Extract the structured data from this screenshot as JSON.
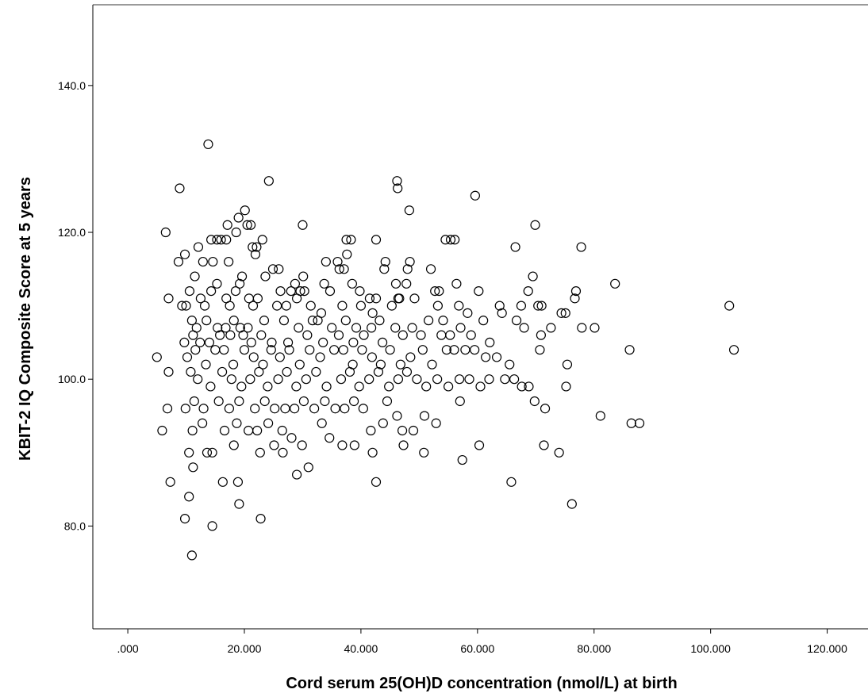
{
  "chart_data": {
    "type": "scatter",
    "xlabel": "Cord serum 25(OH)D concentration (nmol/L) at birth",
    "ylabel": "KBIT-2 IQ Composite Score at 5 years",
    "xlim": [
      -6,
      127
    ],
    "ylim": [
      66,
      151
    ],
    "x_ticks": [
      0,
      20,
      40,
      60,
      80,
      100,
      120
    ],
    "x_tick_labels": [
      ".000",
      "20.000",
      "40.000",
      "60.000",
      "80.000",
      "100.000",
      "120.000"
    ],
    "y_ticks": [
      80,
      100,
      120,
      140
    ],
    "y_tick_labels": [
      "80.0",
      "100.0",
      "120.0",
      "140.0"
    ],
    "grid": false,
    "marker": "open-circle",
    "points": [
      [
        13.8,
        132
      ],
      [
        8.9,
        126
      ],
      [
        24.2,
        127
      ],
      [
        46.2,
        127
      ],
      [
        46.3,
        126
      ],
      [
        59.6,
        125
      ],
      [
        20.1,
        123
      ],
      [
        48.3,
        123
      ],
      [
        6.5,
        120
      ],
      [
        17.1,
        121
      ],
      [
        20.5,
        121
      ],
      [
        21.1,
        121
      ],
      [
        30.0,
        121
      ],
      [
        69.9,
        121
      ],
      [
        19.0,
        122
      ],
      [
        18.6,
        120
      ],
      [
        9.8,
        117
      ],
      [
        12.1,
        118
      ],
      [
        14.3,
        119
      ],
      [
        15.3,
        119
      ],
      [
        16.0,
        119
      ],
      [
        16.9,
        119
      ],
      [
        21.4,
        118
      ],
      [
        22.1,
        118
      ],
      [
        21.9,
        117
      ],
      [
        23.1,
        119
      ],
      [
        37.5,
        119
      ],
      [
        38.3,
        119
      ],
      [
        42.6,
        119
      ],
      [
        54.5,
        119
      ],
      [
        55.4,
        119
      ],
      [
        56.1,
        119
      ],
      [
        66.5,
        118
      ],
      [
        77.8,
        118
      ],
      [
        37.6,
        117
      ],
      [
        8.7,
        116
      ],
      [
        12.9,
        116
      ],
      [
        14.6,
        116
      ],
      [
        17.3,
        116
      ],
      [
        34.0,
        116
      ],
      [
        36.0,
        116
      ],
      [
        44.2,
        116
      ],
      [
        48.4,
        116
      ],
      [
        24.9,
        115
      ],
      [
        25.9,
        115
      ],
      [
        36.3,
        115
      ],
      [
        37.1,
        115
      ],
      [
        44.0,
        115
      ],
      [
        48.0,
        115
      ],
      [
        52.0,
        115
      ],
      [
        11.5,
        114
      ],
      [
        15.3,
        113
      ],
      [
        19.2,
        113
      ],
      [
        19.6,
        114
      ],
      [
        23.6,
        114
      ],
      [
        28.0,
        112
      ],
      [
        28.7,
        113
      ],
      [
        30.1,
        114
      ],
      [
        33.7,
        113
      ],
      [
        38.5,
        113
      ],
      [
        46.0,
        113
      ],
      [
        47.8,
        113
      ],
      [
        56.4,
        113
      ],
      [
        69.5,
        114
      ],
      [
        83.6,
        113
      ],
      [
        10.6,
        112
      ],
      [
        14.3,
        112
      ],
      [
        16.9,
        111
      ],
      [
        18.5,
        112
      ],
      [
        26.2,
        112
      ],
      [
        29.6,
        112
      ],
      [
        30.3,
        112
      ],
      [
        34.7,
        112
      ],
      [
        39.8,
        112
      ],
      [
        41.5,
        111
      ],
      [
        42.6,
        111
      ],
      [
        46.6,
        111
      ],
      [
        52.7,
        112
      ],
      [
        53.4,
        112
      ],
      [
        60.2,
        112
      ],
      [
        68.7,
        112
      ],
      [
        76.9,
        112
      ],
      [
        7.0,
        111
      ],
      [
        9.3,
        110
      ],
      [
        10.0,
        110
      ],
      [
        12.5,
        111
      ],
      [
        13.2,
        110
      ],
      [
        17.5,
        110
      ],
      [
        20.8,
        111
      ],
      [
        21.5,
        110
      ],
      [
        22.3,
        111
      ],
      [
        25.6,
        110
      ],
      [
        27.2,
        110
      ],
      [
        29.0,
        111
      ],
      [
        31.4,
        110
      ],
      [
        33.2,
        109
      ],
      [
        36.8,
        110
      ],
      [
        40.0,
        110
      ],
      [
        42.0,
        109
      ],
      [
        45.3,
        110
      ],
      [
        46.4,
        111
      ],
      [
        49.2,
        111
      ],
      [
        53.2,
        110
      ],
      [
        56.8,
        110
      ],
      [
        63.8,
        110
      ],
      [
        67.5,
        110
      ],
      [
        70.4,
        110
      ],
      [
        71.0,
        110
      ],
      [
        76.7,
        111
      ],
      [
        103.2,
        110
      ],
      [
        11.0,
        108
      ],
      [
        11.8,
        107
      ],
      [
        13.5,
        108
      ],
      [
        15.4,
        107
      ],
      [
        16.8,
        107
      ],
      [
        18.2,
        108
      ],
      [
        19.3,
        107
      ],
      [
        20.6,
        107
      ],
      [
        23.4,
        108
      ],
      [
        26.8,
        108
      ],
      [
        29.3,
        107
      ],
      [
        31.7,
        108
      ],
      [
        32.6,
        108
      ],
      [
        35.0,
        107
      ],
      [
        37.4,
        108
      ],
      [
        39.2,
        107
      ],
      [
        41.8,
        107
      ],
      [
        43.2,
        108
      ],
      [
        45.9,
        107
      ],
      [
        48.8,
        107
      ],
      [
        51.6,
        108
      ],
      [
        54.1,
        108
      ],
      [
        57.1,
        107
      ],
      [
        58.3,
        109
      ],
      [
        61.0,
        108
      ],
      [
        64.2,
        109
      ],
      [
        66.7,
        108
      ],
      [
        68.0,
        107
      ],
      [
        72.6,
        107
      ],
      [
        74.4,
        109
      ],
      [
        75.1,
        109
      ],
      [
        77.9,
        107
      ],
      [
        80.1,
        107
      ],
      [
        11.2,
        106
      ],
      [
        12.4,
        105
      ],
      [
        14.0,
        105
      ],
      [
        15.8,
        106
      ],
      [
        17.6,
        106
      ],
      [
        19.8,
        106
      ],
      [
        21.2,
        105
      ],
      [
        22.9,
        106
      ],
      [
        24.7,
        105
      ],
      [
        27.5,
        105
      ],
      [
        30.8,
        106
      ],
      [
        33.5,
        105
      ],
      [
        36.2,
        106
      ],
      [
        38.7,
        105
      ],
      [
        40.5,
        106
      ],
      [
        43.7,
        105
      ],
      [
        47.2,
        106
      ],
      [
        50.3,
        106
      ],
      [
        53.8,
        106
      ],
      [
        55.3,
        106
      ],
      [
        58.9,
        106
      ],
      [
        62.1,
        105
      ],
      [
        70.9,
        106
      ],
      [
        9.7,
        105
      ],
      [
        5.0,
        103
      ],
      [
        10.2,
        103
      ],
      [
        11.6,
        104
      ],
      [
        13.4,
        102
      ],
      [
        15.0,
        104
      ],
      [
        16.5,
        104
      ],
      [
        18.1,
        102
      ],
      [
        20.0,
        104
      ],
      [
        21.6,
        103
      ],
      [
        23.2,
        102
      ],
      [
        24.6,
        104
      ],
      [
        26.1,
        103
      ],
      [
        27.7,
        104
      ],
      [
        29.5,
        102
      ],
      [
        31.2,
        104
      ],
      [
        33.0,
        103
      ],
      [
        35.4,
        104
      ],
      [
        37.0,
        104
      ],
      [
        38.6,
        102
      ],
      [
        40.2,
        104
      ],
      [
        41.9,
        103
      ],
      [
        43.4,
        102
      ],
      [
        45.0,
        104
      ],
      [
        46.8,
        102
      ],
      [
        48.5,
        103
      ],
      [
        50.6,
        104
      ],
      [
        52.2,
        102
      ],
      [
        54.7,
        104
      ],
      [
        56.0,
        104
      ],
      [
        57.9,
        104
      ],
      [
        59.5,
        104
      ],
      [
        61.4,
        103
      ],
      [
        63.3,
        103
      ],
      [
        65.5,
        102
      ],
      [
        70.7,
        104
      ],
      [
        75.4,
        102
      ],
      [
        86.1,
        104
      ],
      [
        104.0,
        104
      ],
      [
        7.0,
        101
      ],
      [
        10.8,
        101
      ],
      [
        12.0,
        100
      ],
      [
        14.2,
        99
      ],
      [
        16.2,
        101
      ],
      [
        17.8,
        100
      ],
      [
        19.5,
        99
      ],
      [
        21.0,
        100
      ],
      [
        22.5,
        101
      ],
      [
        24.0,
        99
      ],
      [
        25.8,
        100
      ],
      [
        27.3,
        101
      ],
      [
        28.9,
        99
      ],
      [
        30.6,
        100
      ],
      [
        32.3,
        101
      ],
      [
        34.1,
        99
      ],
      [
        36.6,
        100
      ],
      [
        38.1,
        101
      ],
      [
        39.7,
        99
      ],
      [
        41.4,
        100
      ],
      [
        43.0,
        101
      ],
      [
        44.8,
        99
      ],
      [
        46.4,
        100
      ],
      [
        47.9,
        101
      ],
      [
        49.6,
        100
      ],
      [
        51.2,
        99
      ],
      [
        53.1,
        100
      ],
      [
        55.0,
        99
      ],
      [
        56.9,
        100
      ],
      [
        58.6,
        100
      ],
      [
        60.5,
        99
      ],
      [
        62.0,
        100
      ],
      [
        64.7,
        100
      ],
      [
        66.3,
        100
      ],
      [
        67.6,
        99
      ],
      [
        68.8,
        99
      ],
      [
        75.2,
        99
      ],
      [
        6.8,
        96
      ],
      [
        9.9,
        96
      ],
      [
        11.4,
        97
      ],
      [
        13.0,
        96
      ],
      [
        15.6,
        97
      ],
      [
        17.4,
        96
      ],
      [
        19.1,
        97
      ],
      [
        21.8,
        96
      ],
      [
        23.5,
        97
      ],
      [
        25.2,
        96
      ],
      [
        27.0,
        96
      ],
      [
        28.6,
        96
      ],
      [
        30.2,
        97
      ],
      [
        32.0,
        96
      ],
      [
        33.8,
        97
      ],
      [
        35.6,
        96
      ],
      [
        37.2,
        96
      ],
      [
        38.8,
        97
      ],
      [
        40.4,
        96
      ],
      [
        44.5,
        97
      ],
      [
        46.2,
        95
      ],
      [
        50.9,
        95
      ],
      [
        52.9,
        94
      ],
      [
        57.0,
        97
      ],
      [
        69.8,
        97
      ],
      [
        71.6,
        96
      ],
      [
        5.9,
        93
      ],
      [
        11.1,
        93
      ],
      [
        12.8,
        94
      ],
      [
        16.6,
        93
      ],
      [
        18.7,
        94
      ],
      [
        20.7,
        93
      ],
      [
        22.2,
        93
      ],
      [
        24.1,
        94
      ],
      [
        26.5,
        93
      ],
      [
        28.1,
        92
      ],
      [
        33.3,
        94
      ],
      [
        34.6,
        92
      ],
      [
        41.7,
        93
      ],
      [
        43.8,
        94
      ],
      [
        47.1,
        93
      ],
      [
        49.0,
        93
      ],
      [
        81.1,
        95
      ],
      [
        86.4,
        94
      ],
      [
        87.8,
        94
      ],
      [
        10.5,
        90
      ],
      [
        13.6,
        90
      ],
      [
        14.5,
        90
      ],
      [
        18.2,
        91
      ],
      [
        22.7,
        90
      ],
      [
        25.1,
        91
      ],
      [
        26.6,
        90
      ],
      [
        29.9,
        91
      ],
      [
        36.8,
        91
      ],
      [
        38.9,
        91
      ],
      [
        42.0,
        90
      ],
      [
        47.3,
        91
      ],
      [
        50.8,
        90
      ],
      [
        60.3,
        91
      ],
      [
        71.4,
        91
      ],
      [
        74.0,
        90
      ],
      [
        11.2,
        88
      ],
      [
        29.0,
        87
      ],
      [
        31.0,
        88
      ],
      [
        57.4,
        89
      ],
      [
        7.3,
        86
      ],
      [
        16.3,
        86
      ],
      [
        18.9,
        86
      ],
      [
        42.6,
        86
      ],
      [
        65.8,
        86
      ],
      [
        19.1,
        83
      ],
      [
        76.2,
        83
      ],
      [
        9.8,
        81
      ],
      [
        22.8,
        81
      ],
      [
        10.5,
        84
      ],
      [
        14.5,
        80
      ],
      [
        11.0,
        76
      ]
    ]
  }
}
